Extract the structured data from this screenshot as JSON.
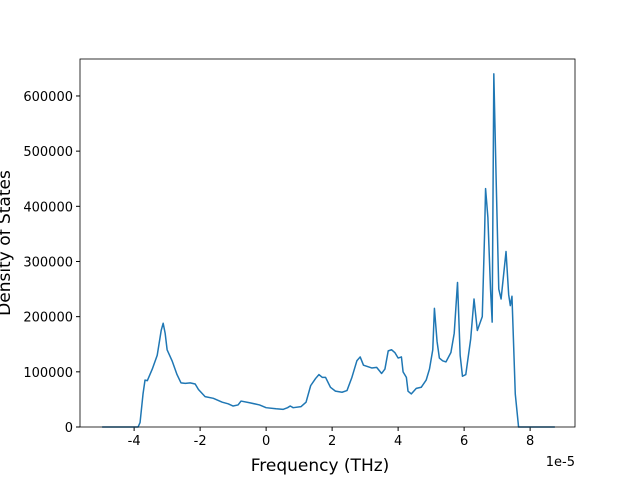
{
  "chart_data": {
    "type": "line",
    "xlabel": "Frequency (THz)",
    "ylabel": "Density of States",
    "x_offset_label": "1e-5",
    "x": [
      -4.97,
      -3.88,
      -3.82,
      -3.73,
      -3.67,
      -3.6,
      -3.45,
      -3.3,
      -3.18,
      -3.12,
      -3.06,
      -3.0,
      -2.85,
      -2.7,
      -2.58,
      -2.45,
      -2.3,
      -2.15,
      -2.05,
      -1.85,
      -1.6,
      -1.33,
      -1.15,
      -1.0,
      -0.85,
      -0.76,
      -0.5,
      -0.2,
      0,
      0.3,
      0.52,
      0.65,
      0.73,
      0.82,
      1.06,
      1.21,
      1.35,
      1.5,
      1.6,
      1.7,
      1.8,
      1.95,
      2.1,
      2.3,
      2.45,
      2.6,
      2.75,
      2.85,
      2.95,
      3.2,
      3.35,
      3.5,
      3.6,
      3.7,
      3.8,
      3.9,
      4.0,
      4.1,
      4.15,
      4.25,
      4.3,
      4.4,
      4.55,
      4.7,
      4.85,
      4.95,
      5.05,
      5.1,
      5.18,
      5.25,
      5.35,
      5.45,
      5.6,
      5.7,
      5.8,
      5.88,
      5.95,
      6.05,
      6.2,
      6.3,
      6.4,
      6.55,
      6.62,
      6.65,
      6.72,
      6.8,
      6.85,
      6.9,
      6.97,
      7.05,
      7.12,
      7.27,
      7.35,
      7.4,
      7.45,
      7.55,
      7.65,
      8.75
    ],
    "series": [
      {
        "color": "#1f77b4",
        "values": [
          0,
          0,
          8000,
          60000,
          85000,
          84000,
          105000,
          130000,
          175000,
          188000,
          170000,
          140000,
          120000,
          95000,
          80000,
          79000,
          80000,
          78000,
          68000,
          55000,
          52000,
          45000,
          42000,
          38000,
          40000,
          47000,
          44000,
          40000,
          35000,
          33000,
          32000,
          35000,
          38000,
          35000,
          37000,
          45000,
          75000,
          88000,
          95000,
          90000,
          90000,
          72000,
          65000,
          63000,
          66000,
          90000,
          120000,
          127000,
          112000,
          107000,
          108000,
          97000,
          105000,
          138000,
          140000,
          135000,
          125000,
          127000,
          100000,
          90000,
          65000,
          60000,
          70000,
          72000,
          85000,
          105000,
          140000,
          215000,
          155000,
          125000,
          120000,
          118000,
          135000,
          170000,
          262000,
          130000,
          92000,
          95000,
          160000,
          232000,
          175000,
          200000,
          350000,
          432000,
          380000,
          250000,
          190000,
          640000,
          450000,
          250000,
          232000,
          318000,
          240000,
          220000,
          237000,
          60000,
          0,
          0
        ]
      }
    ],
    "xlim": [
      -5.64,
      9.36
    ],
    "ylim": [
      0,
      667000
    ],
    "xticks": [
      -4,
      -2,
      0,
      2,
      4,
      6,
      8
    ],
    "yticks": [
      0,
      100000,
      200000,
      300000,
      400000,
      500000,
      600000
    ]
  }
}
